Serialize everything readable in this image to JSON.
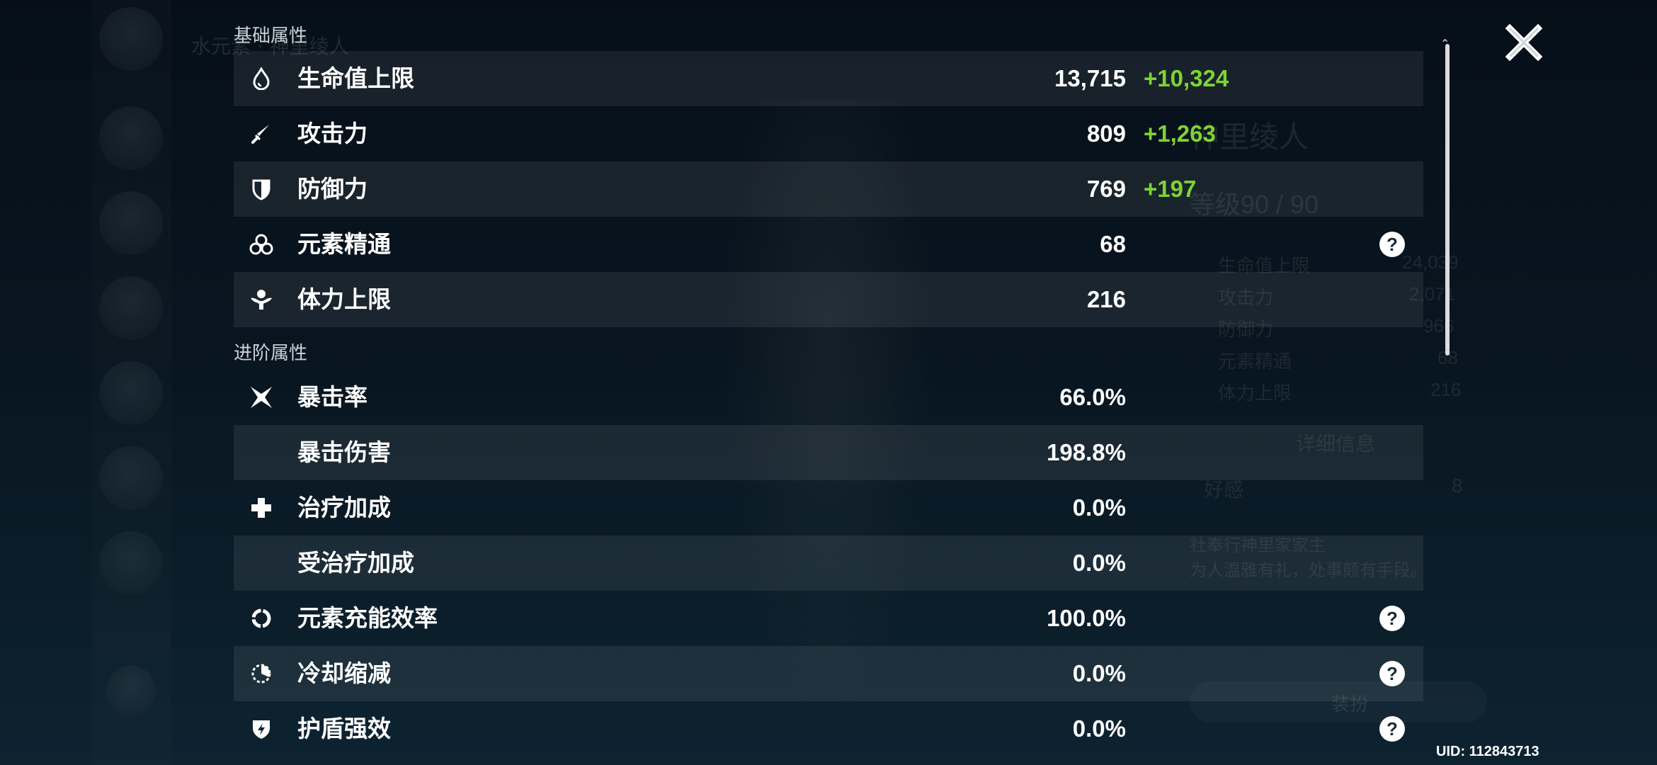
{
  "sections": {
    "base_title": "基础属性",
    "advanced_title": "进阶属性"
  },
  "base_stats": [
    {
      "label": "生命值上限",
      "value": "13,715",
      "bonus": "+10,324",
      "icon": "drop-icon"
    },
    {
      "label": "攻击力",
      "value": "809",
      "bonus": "+1,263",
      "icon": "sword-icon"
    },
    {
      "label": "防御力",
      "value": "769",
      "bonus": "+197",
      "icon": "shield-icon"
    },
    {
      "label": "元素精通",
      "value": "68",
      "bonus": "",
      "icon": "elemental-mastery-icon",
      "help": "?"
    },
    {
      "label": "体力上限",
      "value": "216",
      "bonus": "",
      "icon": "stamina-icon"
    }
  ],
  "advanced_stats": [
    {
      "label": "暴击率",
      "value": "66.0%",
      "icon": "crit-rate-icon"
    },
    {
      "label": "暴击伤害",
      "value": "198.8%",
      "icon": ""
    },
    {
      "label": "治疗加成",
      "value": "0.0%",
      "icon": "heal-cross-icon"
    },
    {
      "label": "受治疗加成",
      "value": "0.0%",
      "icon": ""
    },
    {
      "label": "元素充能效率",
      "value": "100.0%",
      "icon": "energy-recharge-icon",
      "help": "?"
    },
    {
      "label": "冷却缩减",
      "value": "0.0%",
      "icon": "cooldown-icon",
      "help": "?"
    },
    {
      "label": "护盾强效",
      "value": "0.0%",
      "icon": "shield-strength-icon",
      "help": "?"
    }
  ],
  "uid_label": "UID: 112843713",
  "background": {
    "header": "水元素 · 神里绫人",
    "char_name": "神里绫人",
    "level": "等级90 / 90",
    "stats": [
      {
        "label": "生命值上限",
        "value": "24,039"
      },
      {
        "label": "攻击力",
        "value": "2,071"
      },
      {
        "label": "防御力",
        "value": "966"
      },
      {
        "label": "元素精通",
        "value": "68"
      },
      {
        "label": "体力上限",
        "value": "216"
      }
    ],
    "detail_button": "详细信息",
    "friendship_label": "好感",
    "friendship_value": "8",
    "desc_line1": "社奉行神里家家主",
    "desc_line2": "为人温雅有礼，处事颇有手段。",
    "equip_button": "装扮"
  },
  "colors": {
    "bonus": "#7fd334",
    "row_shade": "rgba(255,255,255,0.075)"
  }
}
